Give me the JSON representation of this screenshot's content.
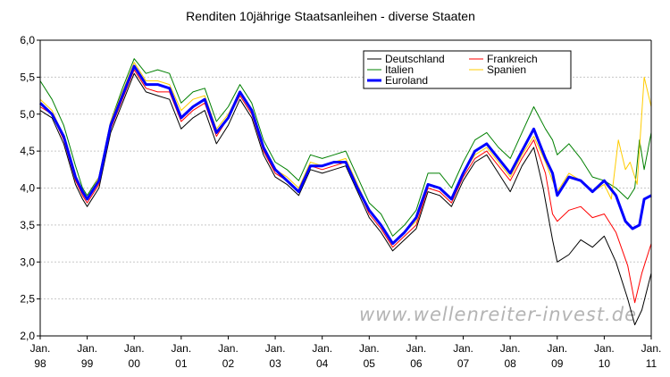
{
  "chart_data": {
    "type": "line",
    "title": "Renditen 10jährige Staatsanleihen - diverse Staaten",
    "watermark": "www.wellenreiter-invest.de",
    "ylim": [
      2.0,
      6.0
    ],
    "y_ticks": [
      "2,0",
      "2,5",
      "3,0",
      "3,5",
      "4,0",
      "4,5",
      "5,0",
      "5,5",
      "6,0"
    ],
    "x_ticks": [
      {
        "line1": "Jan.",
        "line2": "98"
      },
      {
        "line1": "Jan.",
        "line2": "99"
      },
      {
        "line1": "Jan.",
        "line2": "00"
      },
      {
        "line1": "Jan.",
        "line2": "01"
      },
      {
        "line1": "Jan.",
        "line2": "02"
      },
      {
        "line1": "Jan.",
        "line2": "03"
      },
      {
        "line1": "Jan.",
        "line2": "04"
      },
      {
        "line1": "Jan.",
        "line2": "05"
      },
      {
        "line1": "Jan.",
        "line2": "06"
      },
      {
        "line1": "Jan.",
        "line2": "07"
      },
      {
        "line1": "Jan.",
        "line2": "08"
      },
      {
        "line1": "Jan.",
        "line2": "09"
      },
      {
        "line1": "Jan.",
        "line2": "10"
      },
      {
        "line1": "Jan.",
        "line2": "11"
      }
    ],
    "x_start": 1998.0,
    "x_end": 2011.0,
    "grid": "horizontal",
    "legend_position": "top-right",
    "series": [
      {
        "name": "Deutschland",
        "color": "#000000",
        "width": 1,
        "points": [
          [
            1998.0,
            5.05
          ],
          [
            1998.25,
            4.95
          ],
          [
            1998.5,
            4.6
          ],
          [
            1998.75,
            4.05
          ],
          [
            1998.9,
            3.85
          ],
          [
            1999.0,
            3.75
          ],
          [
            1999.25,
            4.0
          ],
          [
            1999.5,
            4.75
          ],
          [
            1999.75,
            5.15
          ],
          [
            2000.0,
            5.55
          ],
          [
            2000.25,
            5.3
          ],
          [
            2000.5,
            5.25
          ],
          [
            2000.75,
            5.2
          ],
          [
            2001.0,
            4.8
          ],
          [
            2001.25,
            4.95
          ],
          [
            2001.5,
            5.05
          ],
          [
            2001.75,
            4.6
          ],
          [
            2002.0,
            4.85
          ],
          [
            2002.25,
            5.2
          ],
          [
            2002.5,
            4.95
          ],
          [
            2002.75,
            4.45
          ],
          [
            2003.0,
            4.15
          ],
          [
            2003.25,
            4.05
          ],
          [
            2003.5,
            3.9
          ],
          [
            2003.75,
            4.25
          ],
          [
            2004.0,
            4.2
          ],
          [
            2004.25,
            4.25
          ],
          [
            2004.5,
            4.3
          ],
          [
            2004.75,
            3.95
          ],
          [
            2005.0,
            3.6
          ],
          [
            2005.25,
            3.4
          ],
          [
            2005.5,
            3.15
          ],
          [
            2005.75,
            3.3
          ],
          [
            2006.0,
            3.45
          ],
          [
            2006.25,
            3.95
          ],
          [
            2006.5,
            3.9
          ],
          [
            2006.75,
            3.75
          ],
          [
            2007.0,
            4.1
          ],
          [
            2007.25,
            4.35
          ],
          [
            2007.5,
            4.45
          ],
          [
            2007.75,
            4.2
          ],
          [
            2008.0,
            3.95
          ],
          [
            2008.25,
            4.3
          ],
          [
            2008.5,
            4.55
          ],
          [
            2008.7,
            4.0
          ],
          [
            2008.9,
            3.3
          ],
          [
            2009.0,
            3.0
          ],
          [
            2009.25,
            3.1
          ],
          [
            2009.5,
            3.3
          ],
          [
            2009.75,
            3.2
          ],
          [
            2010.0,
            3.35
          ],
          [
            2010.25,
            3.0
          ],
          [
            2010.5,
            2.5
          ],
          [
            2010.65,
            2.15
          ],
          [
            2010.8,
            2.35
          ],
          [
            2011.0,
            2.85
          ]
        ]
      },
      {
        "name": "Frankreich",
        "color": "#ff0000",
        "width": 1,
        "points": [
          [
            1998.0,
            5.1
          ],
          [
            1998.25,
            5.0
          ],
          [
            1998.5,
            4.65
          ],
          [
            1998.75,
            4.1
          ],
          [
            1998.9,
            3.9
          ],
          [
            1999.0,
            3.8
          ],
          [
            1999.25,
            4.05
          ],
          [
            1999.5,
            4.8
          ],
          [
            1999.75,
            5.2
          ],
          [
            2000.0,
            5.6
          ],
          [
            2000.25,
            5.35
          ],
          [
            2000.5,
            5.3
          ],
          [
            2000.75,
            5.3
          ],
          [
            2001.0,
            4.9
          ],
          [
            2001.25,
            5.05
          ],
          [
            2001.5,
            5.15
          ],
          [
            2001.75,
            4.7
          ],
          [
            2002.0,
            4.95
          ],
          [
            2002.25,
            5.25
          ],
          [
            2002.5,
            5.0
          ],
          [
            2002.75,
            4.5
          ],
          [
            2003.0,
            4.2
          ],
          [
            2003.25,
            4.1
          ],
          [
            2003.5,
            3.95
          ],
          [
            2003.75,
            4.3
          ],
          [
            2004.0,
            4.25
          ],
          [
            2004.25,
            4.3
          ],
          [
            2004.5,
            4.35
          ],
          [
            2004.75,
            4.0
          ],
          [
            2005.0,
            3.65
          ],
          [
            2005.25,
            3.45
          ],
          [
            2005.5,
            3.2
          ],
          [
            2005.75,
            3.35
          ],
          [
            2006.0,
            3.5
          ],
          [
            2006.25,
            4.0
          ],
          [
            2006.5,
            3.95
          ],
          [
            2006.75,
            3.8
          ],
          [
            2007.0,
            4.15
          ],
          [
            2007.25,
            4.4
          ],
          [
            2007.5,
            4.5
          ],
          [
            2007.75,
            4.3
          ],
          [
            2008.0,
            4.1
          ],
          [
            2008.25,
            4.4
          ],
          [
            2008.5,
            4.65
          ],
          [
            2008.75,
            4.2
          ],
          [
            2008.9,
            3.65
          ],
          [
            2009.0,
            3.55
          ],
          [
            2009.25,
            3.7
          ],
          [
            2009.5,
            3.75
          ],
          [
            2009.75,
            3.6
          ],
          [
            2010.0,
            3.65
          ],
          [
            2010.25,
            3.4
          ],
          [
            2010.5,
            2.95
          ],
          [
            2010.65,
            2.45
          ],
          [
            2010.8,
            2.85
          ],
          [
            2011.0,
            3.25
          ]
        ]
      },
      {
        "name": "Italien",
        "color": "#008000",
        "width": 1,
        "points": [
          [
            1998.0,
            5.45
          ],
          [
            1998.25,
            5.2
          ],
          [
            1998.5,
            4.85
          ],
          [
            1998.75,
            4.3
          ],
          [
            1998.9,
            4.0
          ],
          [
            1999.0,
            3.9
          ],
          [
            1999.25,
            4.15
          ],
          [
            1999.5,
            4.9
          ],
          [
            1999.75,
            5.35
          ],
          [
            2000.0,
            5.75
          ],
          [
            2000.25,
            5.55
          ],
          [
            2000.5,
            5.6
          ],
          [
            2000.75,
            5.55
          ],
          [
            2001.0,
            5.15
          ],
          [
            2001.25,
            5.3
          ],
          [
            2001.5,
            5.35
          ],
          [
            2001.75,
            4.9
          ],
          [
            2002.0,
            5.1
          ],
          [
            2002.25,
            5.4
          ],
          [
            2002.5,
            5.15
          ],
          [
            2002.75,
            4.65
          ],
          [
            2003.0,
            4.35
          ],
          [
            2003.25,
            4.25
          ],
          [
            2003.5,
            4.1
          ],
          [
            2003.75,
            4.45
          ],
          [
            2004.0,
            4.4
          ],
          [
            2004.25,
            4.45
          ],
          [
            2004.5,
            4.5
          ],
          [
            2004.75,
            4.15
          ],
          [
            2005.0,
            3.8
          ],
          [
            2005.25,
            3.65
          ],
          [
            2005.5,
            3.35
          ],
          [
            2005.75,
            3.5
          ],
          [
            2006.0,
            3.7
          ],
          [
            2006.25,
            4.2
          ],
          [
            2006.5,
            4.2
          ],
          [
            2006.75,
            4.0
          ],
          [
            2007.0,
            4.35
          ],
          [
            2007.25,
            4.65
          ],
          [
            2007.5,
            4.75
          ],
          [
            2007.75,
            4.55
          ],
          [
            2008.0,
            4.4
          ],
          [
            2008.25,
            4.75
          ],
          [
            2008.5,
            5.1
          ],
          [
            2008.75,
            4.8
          ],
          [
            2008.9,
            4.65
          ],
          [
            2009.0,
            4.45
          ],
          [
            2009.25,
            4.6
          ],
          [
            2009.5,
            4.4
          ],
          [
            2009.75,
            4.15
          ],
          [
            2010.0,
            4.1
          ],
          [
            2010.25,
            4.0
          ],
          [
            2010.5,
            3.85
          ],
          [
            2010.65,
            4.0
          ],
          [
            2010.75,
            4.65
          ],
          [
            2010.85,
            4.25
          ],
          [
            2011.0,
            4.75
          ]
        ]
      },
      {
        "name": "Spanien",
        "color": "#ffcc00",
        "width": 1,
        "points": [
          [
            1998.0,
            5.2
          ],
          [
            1998.25,
            5.05
          ],
          [
            1998.5,
            4.7
          ],
          [
            1998.75,
            4.15
          ],
          [
            1998.9,
            3.95
          ],
          [
            1999.0,
            3.85
          ],
          [
            1999.25,
            4.15
          ],
          [
            1999.5,
            4.9
          ],
          [
            1999.75,
            5.3
          ],
          [
            2000.0,
            5.7
          ],
          [
            2000.25,
            5.45
          ],
          [
            2000.5,
            5.45
          ],
          [
            2000.75,
            5.4
          ],
          [
            2001.0,
            5.05
          ],
          [
            2001.25,
            5.2
          ],
          [
            2001.5,
            5.25
          ],
          [
            2001.75,
            4.8
          ],
          [
            2002.0,
            5.0
          ],
          [
            2002.25,
            5.3
          ],
          [
            2002.5,
            5.05
          ],
          [
            2002.75,
            4.55
          ],
          [
            2003.0,
            4.25
          ],
          [
            2003.25,
            4.15
          ],
          [
            2003.5,
            4.0
          ],
          [
            2003.75,
            4.35
          ],
          [
            2004.0,
            4.3
          ],
          [
            2004.25,
            4.35
          ],
          [
            2004.5,
            4.4
          ],
          [
            2004.75,
            4.05
          ],
          [
            2005.0,
            3.7
          ],
          [
            2005.25,
            3.5
          ],
          [
            2005.5,
            3.25
          ],
          [
            2005.75,
            3.4
          ],
          [
            2006.0,
            3.55
          ],
          [
            2006.25,
            4.05
          ],
          [
            2006.5,
            4.0
          ],
          [
            2006.75,
            3.85
          ],
          [
            2007.0,
            4.2
          ],
          [
            2007.25,
            4.45
          ],
          [
            2007.5,
            4.55
          ],
          [
            2007.75,
            4.35
          ],
          [
            2008.0,
            4.15
          ],
          [
            2008.25,
            4.45
          ],
          [
            2008.5,
            4.7
          ],
          [
            2008.75,
            4.35
          ],
          [
            2008.9,
            4.1
          ],
          [
            2009.0,
            3.95
          ],
          [
            2009.25,
            4.2
          ],
          [
            2009.5,
            4.1
          ],
          [
            2009.75,
            3.95
          ],
          [
            2010.0,
            4.05
          ],
          [
            2010.15,
            3.85
          ],
          [
            2010.3,
            4.65
          ],
          [
            2010.45,
            4.25
          ],
          [
            2010.55,
            4.35
          ],
          [
            2010.7,
            4.05
          ],
          [
            2010.85,
            5.5
          ],
          [
            2011.0,
            5.1
          ]
        ]
      },
      {
        "name": "Euroland",
        "color": "#0000ff",
        "width": 3,
        "points": [
          [
            1998.0,
            5.15
          ],
          [
            1998.25,
            5.0
          ],
          [
            1998.5,
            4.7
          ],
          [
            1998.75,
            4.15
          ],
          [
            1998.9,
            3.95
          ],
          [
            1999.0,
            3.85
          ],
          [
            1999.25,
            4.1
          ],
          [
            1999.5,
            4.85
          ],
          [
            1999.75,
            5.25
          ],
          [
            2000.0,
            5.65
          ],
          [
            2000.25,
            5.4
          ],
          [
            2000.5,
            5.4
          ],
          [
            2000.75,
            5.35
          ],
          [
            2001.0,
            4.95
          ],
          [
            2001.25,
            5.1
          ],
          [
            2001.5,
            5.2
          ],
          [
            2001.75,
            4.75
          ],
          [
            2002.0,
            4.95
          ],
          [
            2002.25,
            5.3
          ],
          [
            2002.5,
            5.05
          ],
          [
            2002.75,
            4.55
          ],
          [
            2003.0,
            4.25
          ],
          [
            2003.25,
            4.1
          ],
          [
            2003.5,
            3.95
          ],
          [
            2003.75,
            4.3
          ],
          [
            2004.0,
            4.3
          ],
          [
            2004.25,
            4.35
          ],
          [
            2004.5,
            4.35
          ],
          [
            2004.75,
            4.0
          ],
          [
            2005.0,
            3.7
          ],
          [
            2005.25,
            3.5
          ],
          [
            2005.5,
            3.25
          ],
          [
            2005.75,
            3.4
          ],
          [
            2006.0,
            3.6
          ],
          [
            2006.25,
            4.05
          ],
          [
            2006.5,
            4.0
          ],
          [
            2006.75,
            3.85
          ],
          [
            2007.0,
            4.2
          ],
          [
            2007.25,
            4.5
          ],
          [
            2007.5,
            4.6
          ],
          [
            2007.75,
            4.4
          ],
          [
            2008.0,
            4.2
          ],
          [
            2008.25,
            4.5
          ],
          [
            2008.5,
            4.8
          ],
          [
            2008.75,
            4.4
          ],
          [
            2008.9,
            4.2
          ],
          [
            2009.0,
            3.9
          ],
          [
            2009.25,
            4.15
          ],
          [
            2009.5,
            4.1
          ],
          [
            2009.75,
            3.95
          ],
          [
            2010.0,
            4.1
          ],
          [
            2010.25,
            3.9
          ],
          [
            2010.45,
            3.55
          ],
          [
            2010.6,
            3.45
          ],
          [
            2010.75,
            3.5
          ],
          [
            2010.85,
            3.85
          ],
          [
            2011.0,
            3.9
          ]
        ]
      }
    ]
  }
}
